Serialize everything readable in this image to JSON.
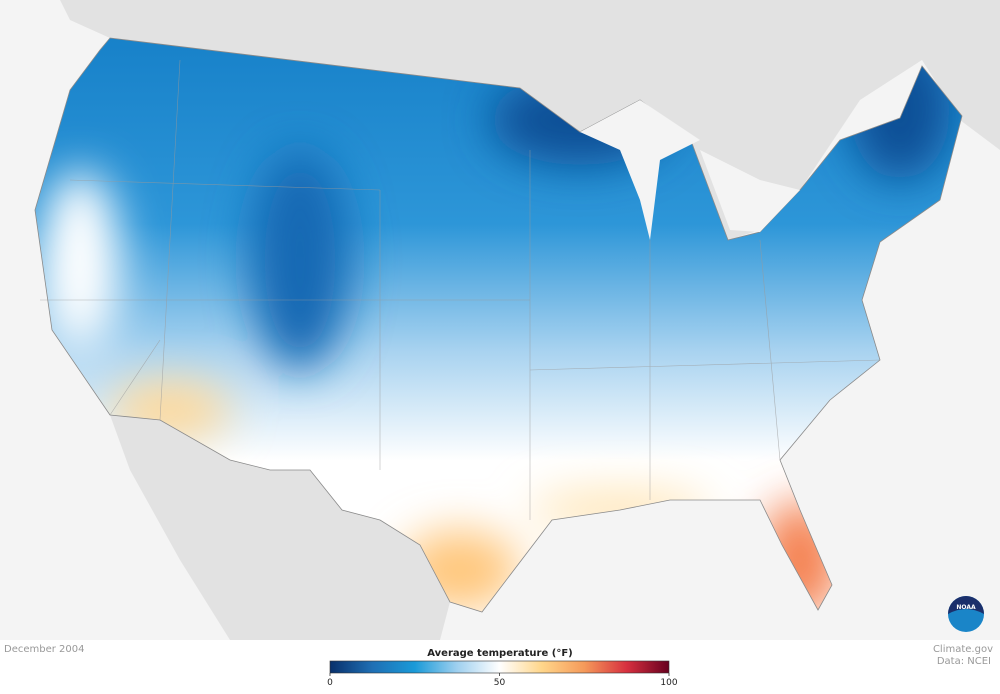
{
  "map": {
    "date": "December 2004",
    "credit": "Climate.gov",
    "source": "Data: NCEI",
    "logo_text": "NOAA"
  },
  "legend": {
    "title": "Average temperature (°F)",
    "range": [
      0,
      100
    ],
    "ticks": [
      0,
      50,
      100
    ],
    "colors": [
      "#08306b",
      "#1f6fb4",
      "#1a9ad8",
      "#9fd0ef",
      "#ffffff",
      "#ffd68a",
      "#f59a5a",
      "#d7303f",
      "#67001f"
    ]
  }
}
